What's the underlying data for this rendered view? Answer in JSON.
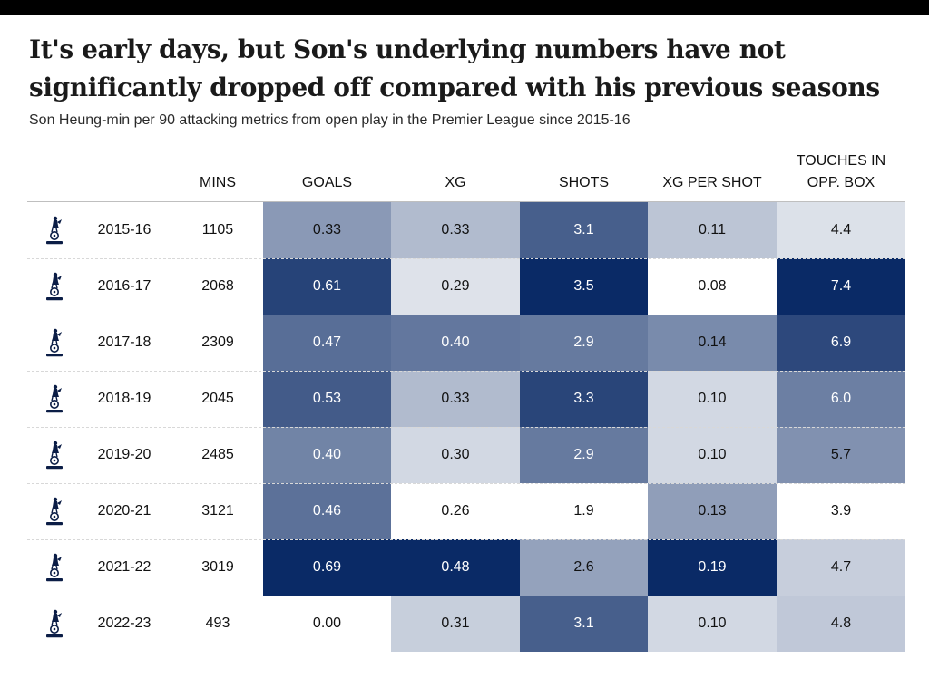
{
  "title": "It's early days, but Son's underlying numbers have not significantly dropped off compared with his previous seasons",
  "subtitle": "Son Heung-min per 90 attacking metrics from open play in the Premier League since 2015-16",
  "chart_data": {
    "type": "table",
    "columns": [
      "MINS",
      "GOALS",
      "XG",
      "SHOTS",
      "XG PER SHOT",
      "TOUCHES IN OPP. BOX"
    ],
    "heat_color": "#0a2a66",
    "row_icon": "tottenham-crest-icon",
    "rows": [
      {
        "season": "2015-16",
        "mins": "1105",
        "goals": "0.33",
        "xg": "0.33",
        "shots": "3.1",
        "xg_per_shot": "0.11",
        "touches": "4.4"
      },
      {
        "season": "2016-17",
        "mins": "2068",
        "goals": "0.61",
        "xg": "0.29",
        "shots": "3.5",
        "xg_per_shot": "0.08",
        "touches": "7.4"
      },
      {
        "season": "2017-18",
        "mins": "2309",
        "goals": "0.47",
        "xg": "0.40",
        "shots": "2.9",
        "xg_per_shot": "0.14",
        "touches": "6.9"
      },
      {
        "season": "2018-19",
        "mins": "2045",
        "goals": "0.53",
        "xg": "0.33",
        "shots": "3.3",
        "xg_per_shot": "0.10",
        "touches": "6.0"
      },
      {
        "season": "2019-20",
        "mins": "2485",
        "goals": "0.40",
        "xg": "0.30",
        "shots": "2.9",
        "xg_per_shot": "0.10",
        "touches": "5.7"
      },
      {
        "season": "2020-21",
        "mins": "3121",
        "goals": "0.46",
        "xg": "0.26",
        "shots": "1.9",
        "xg_per_shot": "0.13",
        "touches": "3.9"
      },
      {
        "season": "2021-22",
        "mins": "3019",
        "goals": "0.69",
        "xg": "0.48",
        "shots": "2.6",
        "xg_per_shot": "0.19",
        "touches": "4.7"
      },
      {
        "season": "2022-23",
        "mins": "493",
        "goals": "0.00",
        "xg": "0.31",
        "shots": "3.1",
        "xg_per_shot": "0.10",
        "touches": "4.8"
      }
    ]
  }
}
